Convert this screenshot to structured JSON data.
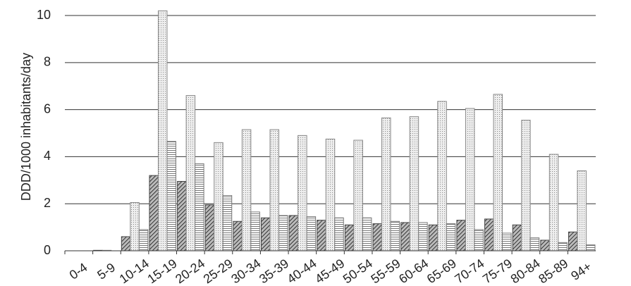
{
  "chart_data": {
    "type": "bar",
    "y_label": "DDD/1000 inhabitants/day",
    "categories": [
      "0-4",
      "5-9",
      "10-14",
      "15-19",
      "20-24",
      "25-29",
      "30-34",
      "35-39",
      "40-44",
      "45-49",
      "50-54",
      "55-59",
      "60-64",
      "65-69",
      "70-74",
      "75-79",
      "80-84",
      "85-89",
      "94+"
    ],
    "series": [
      {
        "color": "#444444",
        "pattern": "diagonal",
        "values": [
          0,
          0.02,
          0.6,
          3.2,
          2.95,
          1.95,
          1.25,
          1.4,
          1.5,
          1.3,
          1.1,
          1.15,
          1.2,
          1.1,
          1.3,
          1.35,
          1.1,
          0.45,
          0.8
        ]
      },
      {
        "color": "#888888",
        "pattern": "dots",
        "values": [
          0,
          0.02,
          2.05,
          10.2,
          6.6,
          4.6,
          5.15,
          5.15,
          4.9,
          4.75,
          4.7,
          5.65,
          5.7,
          6.35,
          6.05,
          6.65,
          5.55,
          4.1,
          3.4
        ]
      },
      {
        "color": "#777777",
        "pattern": "horizontal",
        "values": [
          0,
          0,
          0.9,
          4.65,
          3.7,
          2.35,
          1.65,
          1.5,
          1.45,
          1.4,
          1.4,
          1.25,
          1.2,
          1.15,
          0.9,
          0.75,
          0.55,
          0.35,
          0.25
        ]
      }
    ],
    "ylim": [
      0,
      10.6
    ],
    "yticks": [
      0,
      2,
      4,
      6,
      8,
      10
    ],
    "grid": true
  }
}
